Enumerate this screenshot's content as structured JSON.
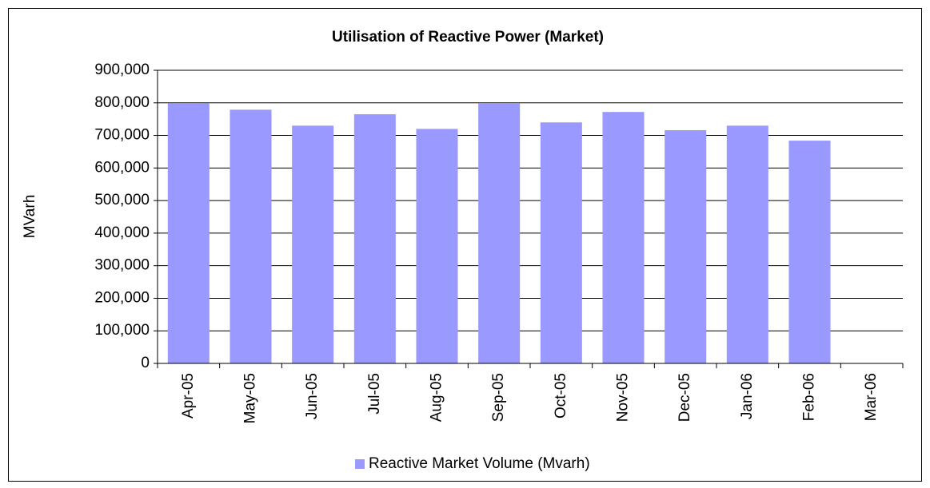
{
  "chart_data": {
    "type": "bar",
    "title": "Utilisation of Reactive Power (Market)",
    "y_label": "MVarh",
    "categories": [
      "Apr-05",
      "May-05",
      "Jun-05",
      "Jul-05",
      "Aug-05",
      "Sep-05",
      "Oct-05",
      "Nov-05",
      "Dec-05",
      "Jan-06",
      "Feb-06",
      "Mar-06"
    ],
    "series": [
      {
        "name": "Reactive Market Volume (Mvarh)",
        "color": "#9999ff",
        "values": [
          798000,
          779000,
          730000,
          765000,
          720000,
          799000,
          740000,
          772000,
          716000,
          730000,
          684000,
          null
        ]
      }
    ],
    "ylim": [
      0,
      900000
    ],
    "yticks": [
      0,
      {
        "value": 100000,
        "label": "100,000"
      },
      {
        "value": 200000,
        "label": "200,000"
      },
      {
        "value": 300000,
        "label": "300,000"
      },
      {
        "value": 400000,
        "label": "400,000"
      },
      {
        "value": 500000,
        "label": "500,000"
      },
      {
        "value": 600000,
        "label": "600,000"
      },
      {
        "value": 700000,
        "label": "700,000"
      },
      {
        "value": 800000,
        "label": "800,000"
      },
      {
        "value": 900000,
        "label": "900,000"
      }
    ],
    "grid": true,
    "legend": "bottom"
  }
}
